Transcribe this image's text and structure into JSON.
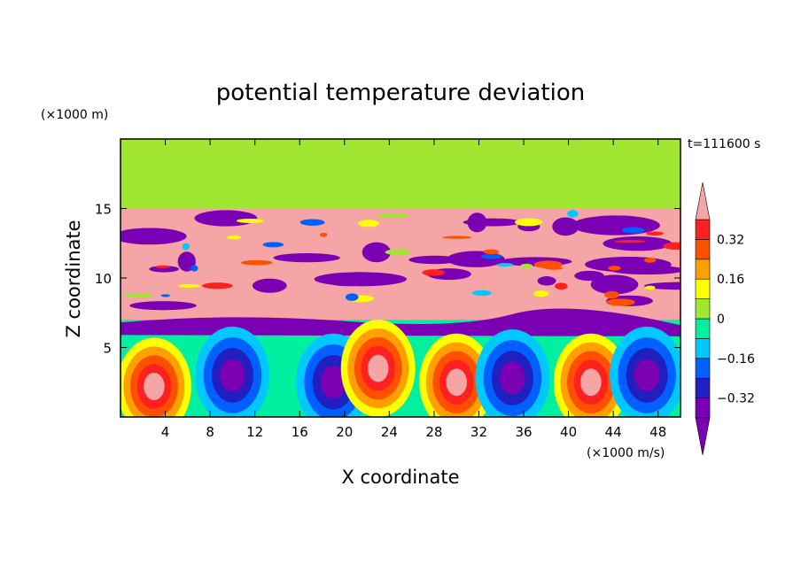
{
  "chart_data": {
    "type": "heatmap",
    "title": "potential temperature deviation",
    "xlabel": "X coordinate",
    "ylabel": "Z coordinate",
    "x_unit": "(×1000 m/s)",
    "y_unit": "(×1000 m)",
    "time_label": "t=111600 s",
    "xlim": [
      0,
      50
    ],
    "ylim": [
      0,
      20
    ],
    "x_ticks": [
      "4",
      "8",
      "12",
      "16",
      "20",
      "24",
      "28",
      "32",
      "36",
      "40",
      "44",
      "48"
    ],
    "x_tick_values": [
      4,
      8,
      12,
      16,
      20,
      24,
      28,
      32,
      36,
      40,
      44,
      48
    ],
    "y_ticks": [
      "5",
      "10",
      "15"
    ],
    "y_tick_values": [
      5,
      10,
      15
    ],
    "colorbar": {
      "levels": [
        -0.4,
        -0.32,
        -0.24,
        -0.16,
        -0.08,
        0,
        0.08,
        0.16,
        0.24,
        0.32,
        0.4
      ],
      "labels": [
        "0.32",
        "0.16",
        "0",
        "−0.16",
        "−0.32"
      ],
      "label_values": [
        0.32,
        0.16,
        0,
        -0.16,
        -0.32
      ],
      "colors": [
        "#7b00b4",
        "#2020c0",
        "#0060ff",
        "#00c8ff",
        "#00f0a0",
        "#a0e632",
        "#ffff00",
        "#ffa000",
        "#ff5000",
        "#ff2020",
        "#f5a5a5"
      ],
      "extend": "both"
    },
    "grid": false,
    "legend": "colorbar-right"
  }
}
